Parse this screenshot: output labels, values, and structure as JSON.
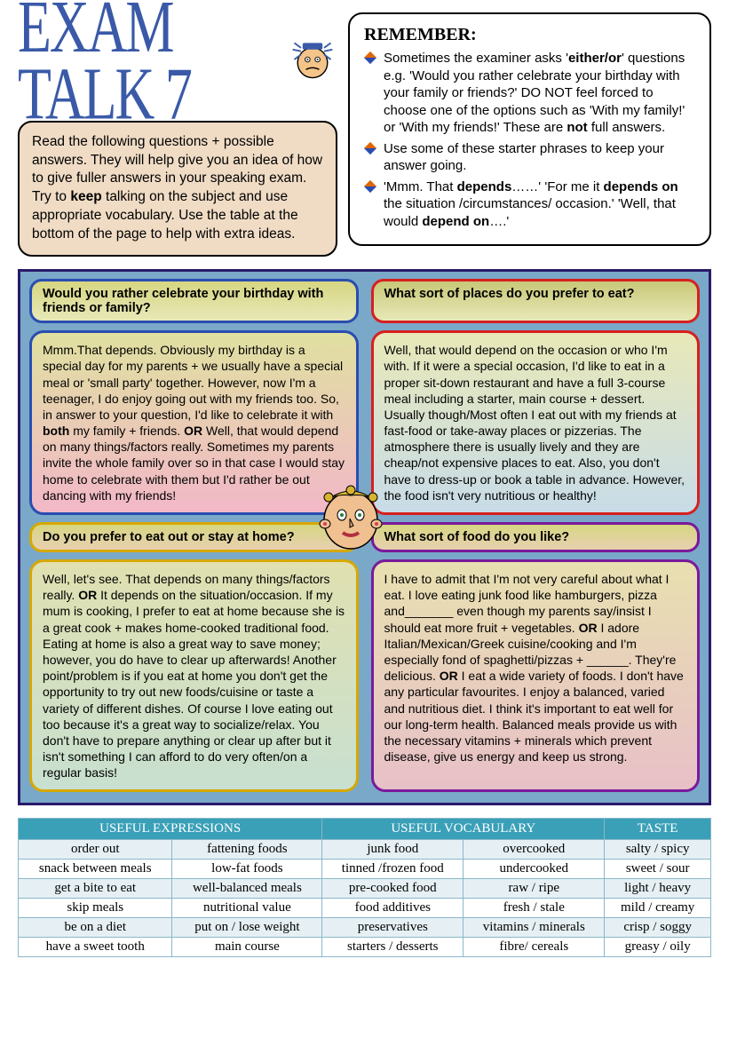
{
  "title": "EXAM TALK 7",
  "intro": {
    "pre": "Read the following questions + possible answers. They will help give you an idea of how to give fuller answers in your speaking exam.  Try to ",
    "bold1": "keep",
    "post": " talking on the subject and use appropriate vocabulary. Use the table at the bottom of the page to help with extra ideas."
  },
  "remember": {
    "heading": "REMEMBER:",
    "item1": {
      "pre": "Sometimes the examiner asks '",
      "b1": "either/or",
      "mid": "' questions e.g. 'Would you rather celebrate your birthday with your family or friends?' DO NOT feel forced to choose one of the options such as 'With my family!' or 'With my friends!' These are ",
      "b2": "not",
      "post": " full answers."
    },
    "item2": "Use some of these starter phrases to keep your answer going.",
    "item3": {
      "pre": "'Mmm. That ",
      "b1": "depends",
      "mid1": "……' 'For me it ",
      "b2": "depends on",
      "mid2": " the situation /circumstances/ occasion.' 'Well, that would ",
      "b3": "depend on",
      "post": "….'"
    }
  },
  "q1": "Would you rather celebrate your birthday with friends or family?",
  "a1": {
    "pre": "Mmm.That depends. Obviously my birthday is a special day for my parents + we usually have a special meal or 'small party' together. However, now I'm a teenager, I do enjoy going out with my friends too. So, in answer to your question, I'd like to celebrate it with ",
    "b1": "both",
    "mid": " my family + friends. ",
    "b2": "OR",
    "post": " Well, that would depend on many things/factors really. Sometimes my parents invite the whole family over so in that case I would stay home to celebrate with them but I'd rather be out dancing with my friends!"
  },
  "q2": "What sort of places do you prefer to eat?",
  "a2": "Well, that would depend on the occasion or who I'm with. If it were a special occasion, I'd like to eat in a proper sit-down restaurant and have a full 3-course meal including a starter, main course + dessert. Usually though/Most often I eat out with my friends at fast-food or take-away places or pizzerias. The atmosphere there is usually lively and they are cheap/not expensive places to eat. Also, you don't have to dress-up or book a table in advance. However, the food isn't very nutritious or healthy!",
  "q3": "Do you prefer to eat out or stay at home?",
  "a3": {
    "pre": "Well, let's see. That depends on many things/factors really. ",
    "b1": "OR",
    "post": " It depends on the situation/occasion. If my mum is cooking, I prefer to eat at home because she is a great cook + makes home-cooked traditional food. Eating at home is also a great way to save money; however, you do have to clear up afterwards! Another point/problem is if you eat at home you don't get the opportunity to try out new foods/cuisine or taste a variety of different dishes. Of course I love eating out too because it's a great way to socialize/relax. You don't have to prepare anything or clear up after but it isn't something I can afford to do very often/on a regular basis!"
  },
  "q4": "What sort of food do you like?",
  "a4": {
    "pre": "I have to admit that I'm not very careful about what I eat. I love eating junk food like hamburgers, pizza and_______ even though my parents say/insist I should eat more fruit + vegetables. ",
    "b1": "OR",
    "mid": " I adore Italian/Mexican/Greek cuisine/cooking and I'm especially fond of spaghetti/pizzas + ______. They're delicious. ",
    "b2": "OR",
    "post": " I eat a wide variety of foods. I don't have any particular favourites. I enjoy a balanced, varied and nutritious diet. I think it's important to eat well for our long-term health. Balanced meals provide us with the necessary vitamins + minerals which prevent disease, give us energy and keep us strong."
  },
  "table": {
    "headers": [
      "USEFUL EXPRESSIONS",
      "",
      "USEFUL VOCABULARY",
      "",
      "TASTE"
    ],
    "col_headers": {
      "h1": "USEFUL EXPRESSIONS",
      "h2": "USEFUL VOCABULARY",
      "h3": "TASTE"
    },
    "rows": [
      [
        "order out",
        "fattening foods",
        "junk food",
        "overcooked",
        "salty / spicy"
      ],
      [
        "snack between meals",
        "low-fat foods",
        "tinned /frozen food",
        "undercooked",
        "sweet / sour"
      ],
      [
        "get a bite to eat",
        "well-balanced meals",
        "pre-cooked food",
        "raw / ripe",
        "light / heavy"
      ],
      [
        "skip meals",
        "nutritional value",
        "food additives",
        "fresh / stale",
        "mild / creamy"
      ],
      [
        "be on a diet",
        "put on / lose weight",
        "preservatives",
        "vitamins / minerals",
        "crisp / soggy"
      ],
      [
        "have a sweet tooth",
        "main course",
        "starters / desserts",
        "fibre/ cereals",
        "greasy / oily"
      ]
    ]
  },
  "colors": {
    "title": "#3a5aa8",
    "panel_bg": "#7aa8c9",
    "intro_bg": "#f0dcc5",
    "table_header": "#3aa0b8",
    "border_q1": "#2a4db0",
    "border_q2": "#d62020",
    "border_q3": "#d6a800",
    "border_q4": "#7a1a9a"
  }
}
